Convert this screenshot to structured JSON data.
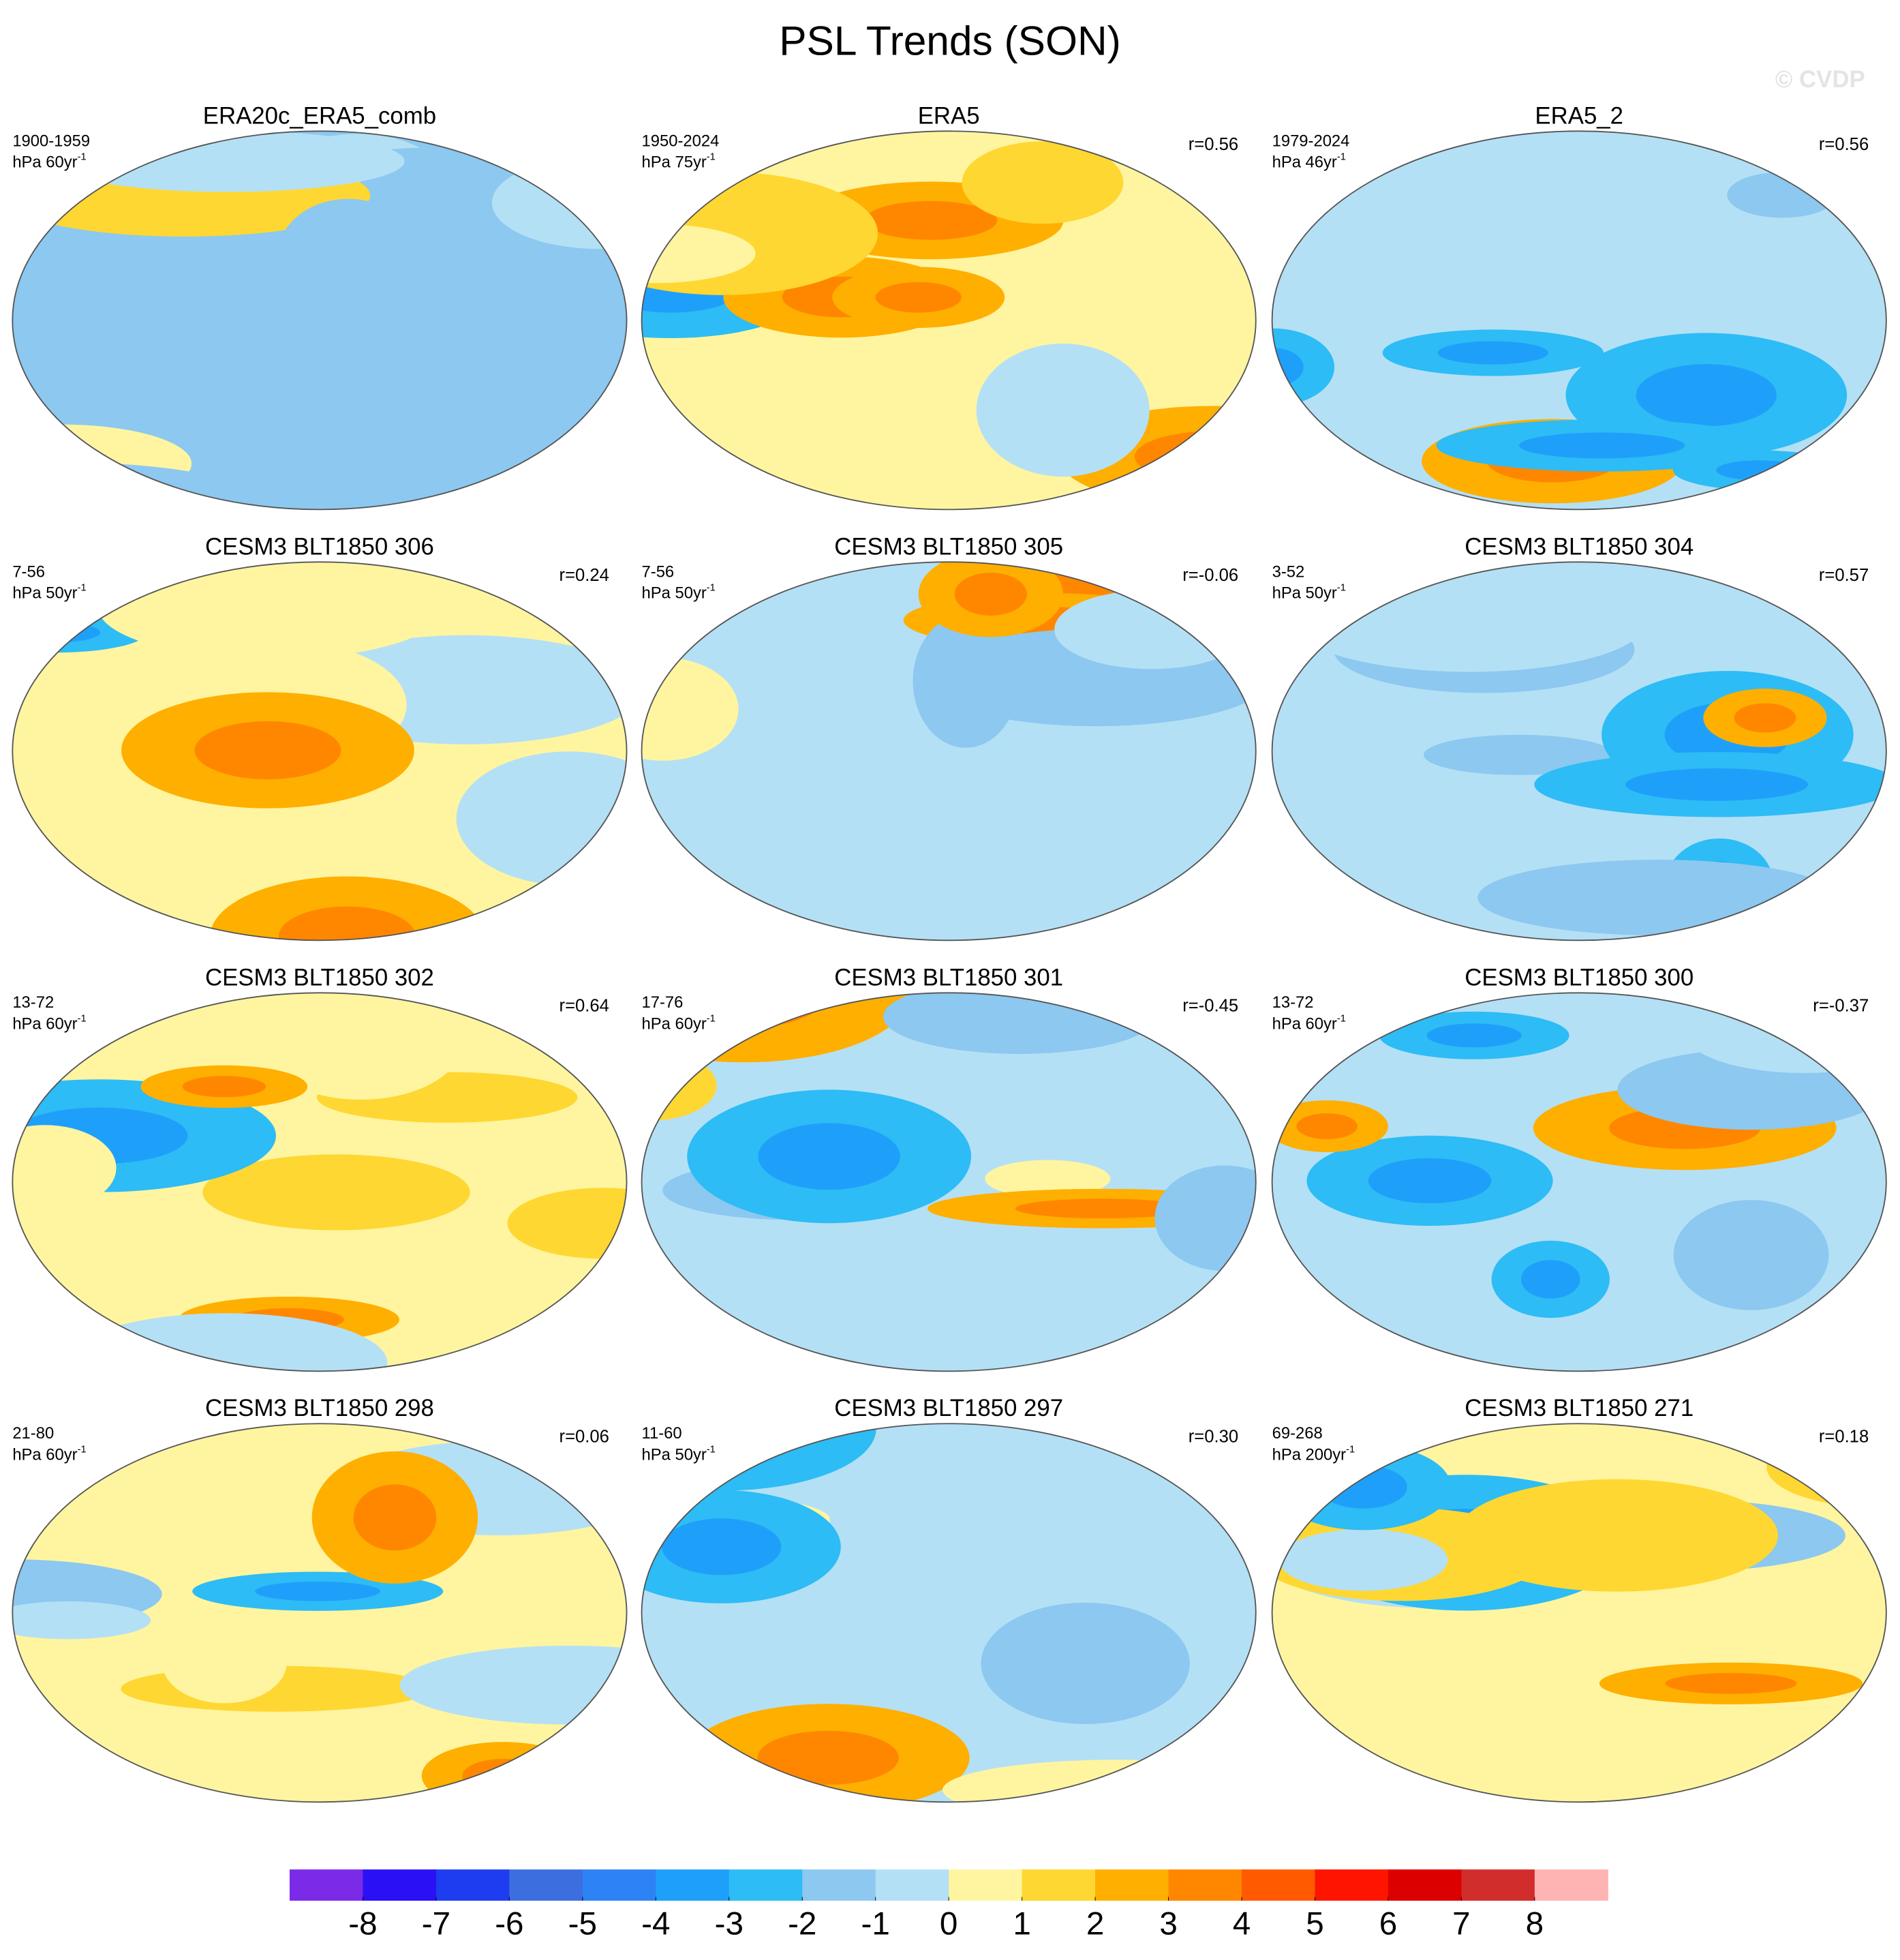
{
  "chart_data": {
    "type": "contour-map",
    "title": "PSL Trends (SON)",
    "watermark": "© CVDP",
    "panels": [
      {
        "title": "ERA20c_ERA5_comb",
        "period": "1900-1959",
        "units": "hPa 60yr",
        "units_sup": "-1",
        "base": "#8cc8f0"
      },
      {
        "title": "ERA5",
        "period": "1950-2024",
        "units": "hPa 75yr",
        "units_sup": "-1",
        "r": "r=0.56",
        "base": "#fff5a0"
      },
      {
        "title": "ERA5_2",
        "period": "1979-2024",
        "units": "hPa 46yr",
        "units_sup": "-1",
        "r": "r=0.56",
        "base": "#b4e0f5"
      },
      {
        "title": "CESM3 BLT1850 306",
        "period": "7-56",
        "units": "hPa 50yr",
        "units_sup": "-1",
        "r": "r=0.24",
        "base": "#fff5a0"
      },
      {
        "title": "CESM3 BLT1850 305",
        "period": "7-56",
        "units": "hPa 50yr",
        "units_sup": "-1",
        "r": "r=-0.06",
        "base": "#b4e0f5"
      },
      {
        "title": "CESM3 BLT1850 304",
        "period": "3-52",
        "units": "hPa 50yr",
        "units_sup": "-1",
        "r": "r=0.57",
        "base": "#b4e0f5"
      },
      {
        "title": "CESM3 BLT1850 302",
        "period": "13-72",
        "units": "hPa 60yr",
        "units_sup": "-1",
        "r": "r=0.64",
        "base": "#fff5a0"
      },
      {
        "title": "CESM3 BLT1850 301",
        "period": "17-76",
        "units": "hPa 60yr",
        "units_sup": "-1",
        "r": "r=-0.45",
        "base": "#b4e0f5"
      },
      {
        "title": "CESM3 BLT1850 300",
        "period": "13-72",
        "units": "hPa 60yr",
        "units_sup": "-1",
        "r": "r=-0.37",
        "base": "#b4e0f5"
      },
      {
        "title": "CESM3 BLT1850 298",
        "period": "21-80",
        "units": "hPa 60yr",
        "units_sup": "-1",
        "r": "r=0.06",
        "base": "#fff5a0"
      },
      {
        "title": "CESM3 BLT1850 297",
        "period": "11-60",
        "units": "hPa 50yr",
        "units_sup": "-1",
        "r": "r=0.30",
        "base": "#b4e0f5"
      },
      {
        "title": "CESM3 BLT1850 271",
        "period": "69-268",
        "units": "hPa 200yr",
        "units_sup": "-1",
        "r": "r=0.18",
        "base": "#fff5a0"
      }
    ],
    "colorbar": {
      "levels": [
        -8,
        -7,
        -6,
        -5,
        -4,
        -3,
        -2,
        -1,
        0,
        1,
        2,
        3,
        4,
        5,
        6,
        7,
        8
      ],
      "colors": [
        "#7b2ae8",
        "#2a10f5",
        "#1e3cf0",
        "#3c6ee0",
        "#2d82f5",
        "#1ea0fa",
        "#2dbcf5",
        "#8cc8f0",
        "#b4e0f5",
        "#fff5a0",
        "#ffd732",
        "#ffaf00",
        "#ff8700",
        "#ff5a00",
        "#ff1400",
        "#dc0000",
        "#d22d2d",
        "#ffb4b4"
      ]
    }
  }
}
